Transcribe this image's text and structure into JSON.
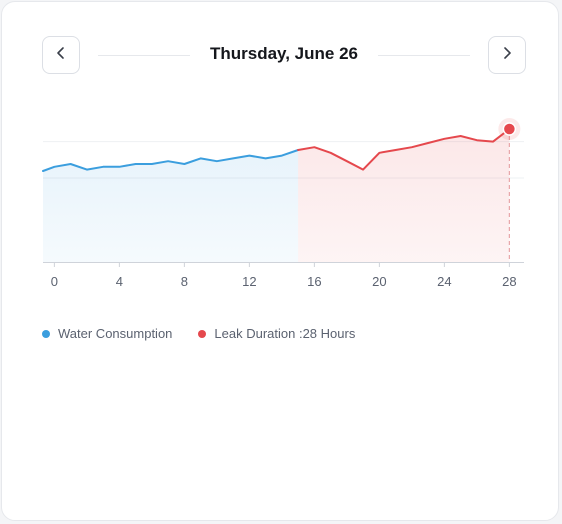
{
  "header": {
    "date_title": "Thursday, June 26",
    "prev_icon": "chevron-left-icon",
    "next_icon": "chevron-right-icon"
  },
  "legend": {
    "water_label": "Water Consumption",
    "leak_label": "Leak Duration :28 Hours"
  },
  "colors": {
    "water": "#3b9ede",
    "leak": "#e5484d",
    "water_fill": "#eaf3fb",
    "leak_fill": "#fdecee"
  },
  "chart_data": {
    "type": "area",
    "x_ticks": [
      0,
      4,
      8,
      12,
      16,
      20,
      24,
      28
    ],
    "xlim": [
      -0.7,
      28.9
    ],
    "ylim": [
      0,
      100
    ],
    "highlight_x": 28,
    "series": [
      {
        "name": "Water Consumption",
        "x": [
          -0.7,
          0,
          1,
          2,
          3,
          4,
          5,
          6,
          7,
          8,
          9,
          10,
          11,
          12,
          13,
          14,
          15
        ],
        "values": [
          65,
          68,
          70,
          66,
          68,
          68,
          70,
          70,
          72,
          70,
          74,
          72,
          74,
          76,
          74,
          76,
          80
        ]
      },
      {
        "name": "Leak Duration",
        "x": [
          15,
          16,
          17,
          18,
          19,
          20,
          21,
          22,
          23,
          24,
          25,
          26,
          27,
          28
        ],
        "values": [
          80,
          82,
          78,
          72,
          66,
          78,
          80,
          82,
          85,
          88,
          90,
          87,
          86,
          95
        ]
      }
    ]
  }
}
